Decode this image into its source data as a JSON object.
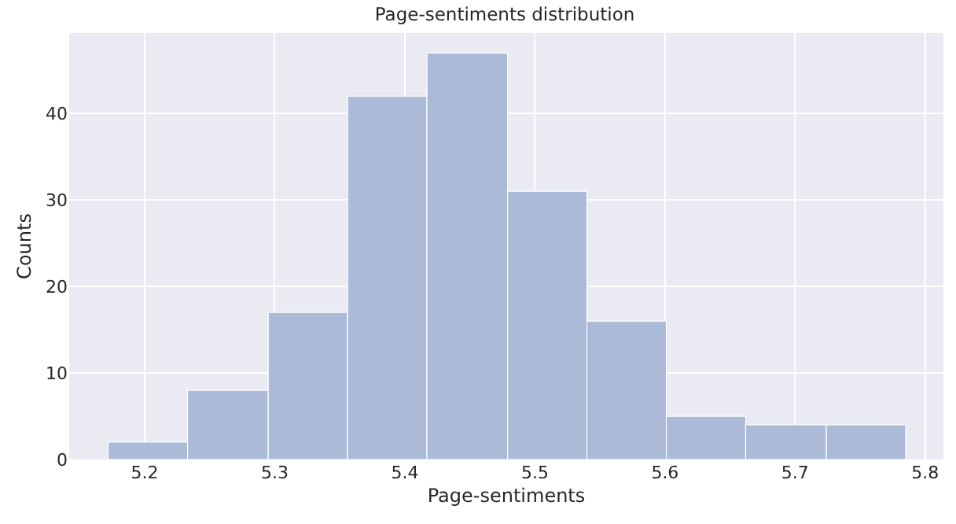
{
  "chart_data": {
    "type": "histogram",
    "title": "Page-sentiments distribution",
    "xlabel": "Page-sentiments",
    "ylabel": "Counts",
    "bins": [
      5.172,
      5.233,
      5.295,
      5.356,
      5.417,
      5.479,
      5.54,
      5.601,
      5.662,
      5.724,
      5.785
    ],
    "values": [
      2,
      8,
      17,
      42,
      47,
      31,
      16,
      5,
      4,
      4
    ],
    "color": "#abbad7",
    "xlim": [
      5.142,
      5.814
    ],
    "xticks": [
      5.2,
      5.3,
      5.4,
      5.5,
      5.6,
      5.7,
      5.8
    ],
    "ylim": [
      0,
      49.3
    ],
    "yticks": [
      0,
      10,
      20,
      30,
      40
    ],
    "grid": true
  }
}
